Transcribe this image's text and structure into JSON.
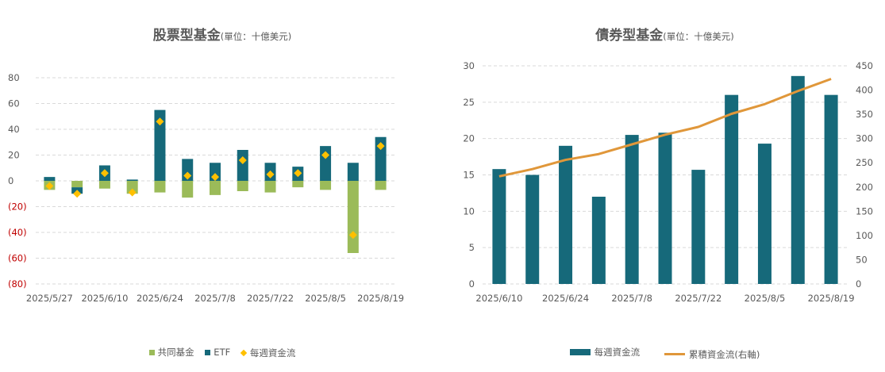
{
  "colors": {
    "mutual_fund": "#9bbb59",
    "etf": "#16697a",
    "weekly_flow_marker": "#ffc000",
    "cumulative_line": "#e0973a",
    "grid": "#d9d9d9",
    "negative_tick": "#c00000"
  },
  "chart_data": [
    {
      "type": "bar",
      "title": "股票型基金",
      "unit": "(單位：十億美元)",
      "categories": [
        "2025/5/27",
        "2025/6/3",
        "2025/6/10",
        "2025/6/17",
        "2025/6/24",
        "2025/7/1",
        "2025/7/8",
        "2025/7/15",
        "2025/7/22",
        "2025/7/29",
        "2025/8/5",
        "2025/8/12",
        "2025/8/19"
      ],
      "x_tick_labels": [
        "2025/5/27",
        "2025/6/10",
        "2025/6/24",
        "2025/7/8",
        "2025/7/22",
        "2025/8/5",
        "2025/8/19"
      ],
      "y_tick_labels": [
        "80",
        "60",
        "40",
        "20",
        "0",
        "(20)",
        "(40)",
        "(60)",
        "(80)"
      ],
      "ylim": [
        -80,
        80
      ],
      "grid": true,
      "legend_position": "bottom",
      "series": [
        {
          "name": "共同基金",
          "type": "stacked-bar",
          "values": [
            -7,
            -5,
            -6,
            -10,
            -9,
            -13,
            -11,
            -8,
            -9,
            -5,
            -7,
            -56,
            -7
          ]
        },
        {
          "name": "ETF",
          "type": "stacked-bar",
          "values": [
            3,
            -5,
            12,
            1,
            55,
            17,
            14,
            24,
            14,
            11,
            27,
            14,
            34
          ]
        },
        {
          "name": "每週資金流",
          "type": "diamond-marker",
          "values": [
            -4,
            -10,
            6,
            -9,
            46,
            4,
            3,
            16,
            5,
            6,
            20,
            -42,
            27
          ]
        }
      ]
    },
    {
      "type": "bar",
      "title": "債券型基金",
      "unit": "(單位：十億美元)",
      "categories": [
        "2025/6/10",
        "2025/6/17",
        "2025/6/24",
        "2025/7/1",
        "2025/7/8",
        "2025/7/15",
        "2025/7/22",
        "2025/7/29",
        "2025/8/5",
        "2025/8/12",
        "2025/8/19"
      ],
      "x_tick_labels": [
        "2025/6/10",
        "2025/6/24",
        "2025/7/8",
        "2025/7/22",
        "2025/8/5",
        "2025/8/19"
      ],
      "y_tick_labels": [
        "0",
        "5",
        "10",
        "15",
        "20",
        "25",
        "30"
      ],
      "y2_tick_labels": [
        "0",
        "50",
        "100",
        "150",
        "200",
        "250",
        "300",
        "350",
        "400",
        "450"
      ],
      "ylim": [
        0,
        30
      ],
      "y2lim": [
        0,
        450
      ],
      "grid": true,
      "legend_position": "bottom",
      "series": [
        {
          "name": "每週資金流",
          "type": "bar",
          "axis": "left",
          "values": [
            15.8,
            15,
            19,
            12,
            20.5,
            20.8,
            15.7,
            26,
            19.3,
            28.6,
            26
          ]
        },
        {
          "name": "累積資金流(右軸)",
          "type": "line",
          "axis": "right",
          "values": [
            222,
            237,
            256,
            268,
            288,
            308,
            324,
            351,
            371,
            398,
            423
          ]
        }
      ]
    }
  ]
}
